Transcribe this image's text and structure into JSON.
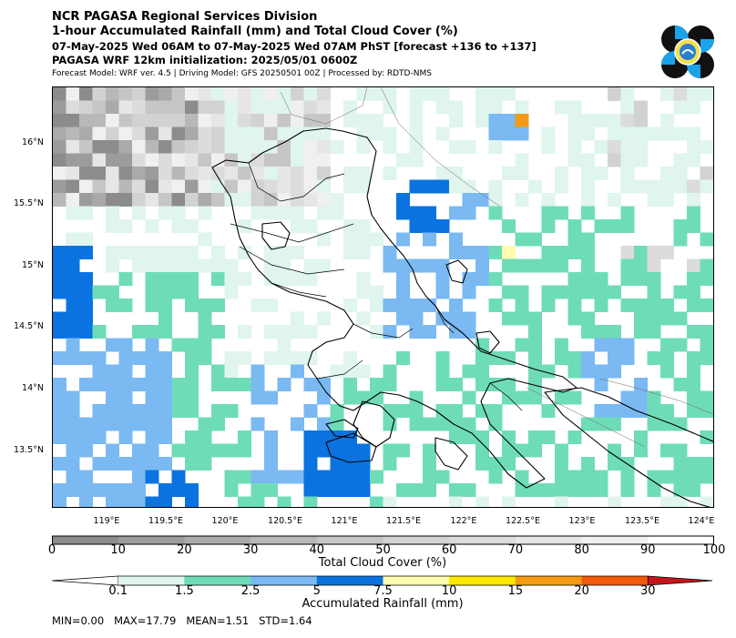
{
  "header": {
    "line1": "NCR PAGASA Regional Services Division",
    "line2": "1-hour Accumulated Rainfall (mm) and Total Cloud Cover (%)",
    "line3": "07-May-2025 Wed 06AM to 07-May-2025 Wed 07AM PhST [forecast +136 to +137]",
    "line4": "PAGASA WRF 12km initialization: 2025/05/01 0600Z",
    "line5": "Forecast Model: WRF ver. 4.5 | Driving Model: GFS 20250501 00Z | Processed by: RDTD-NMS"
  },
  "map": {
    "lat_labels": [
      "16°N",
      "15.5°N",
      "15°N",
      "14.5°N",
      "14°N",
      "13.5°N"
    ],
    "lon_labels": [
      "119°E",
      "119.5°E",
      "120°E",
      "120.5°E",
      "121°E",
      "121.5°E",
      "122°E",
      "122.5°E",
      "123°E",
      "123.5°E",
      "124°E"
    ],
    "lat_range": [
      13.0,
      16.45
    ],
    "lon_range": [
      118.6,
      124.05
    ]
  },
  "cloud_colorbar": {
    "ticks": [
      "0",
      "10",
      "20",
      "30",
      "40",
      "50",
      "60",
      "70",
      "80",
      "90",
      "100"
    ],
    "label": "Total Cloud Cover (%)",
    "colors": [
      "#8c8c8c",
      "#9c9c9c",
      "#aaaaaa",
      "#b8b8b8",
      "#c6c6c6",
      "#d2d2d2",
      "#dcdcdc",
      "#e6e6e6",
      "#f0f0f0",
      "#ffffff"
    ]
  },
  "rain_colorbar": {
    "ticks": [
      "0.1",
      "1.5",
      "2.5",
      "5",
      "7.5",
      "10",
      "15",
      "20",
      "30"
    ],
    "label": "Accumulated Rainfall (mm)",
    "colors": [
      "#dff5ee",
      "#6fdcb8",
      "#7ab9f2",
      "#0a73e0",
      "#fffcb0",
      "#ffe600",
      "#f59a14",
      "#f05a0a",
      "#c8141e"
    ]
  },
  "stats": "MIN=0.00   MAX=17.79   MEAN=1.51   STD=1.64"
}
